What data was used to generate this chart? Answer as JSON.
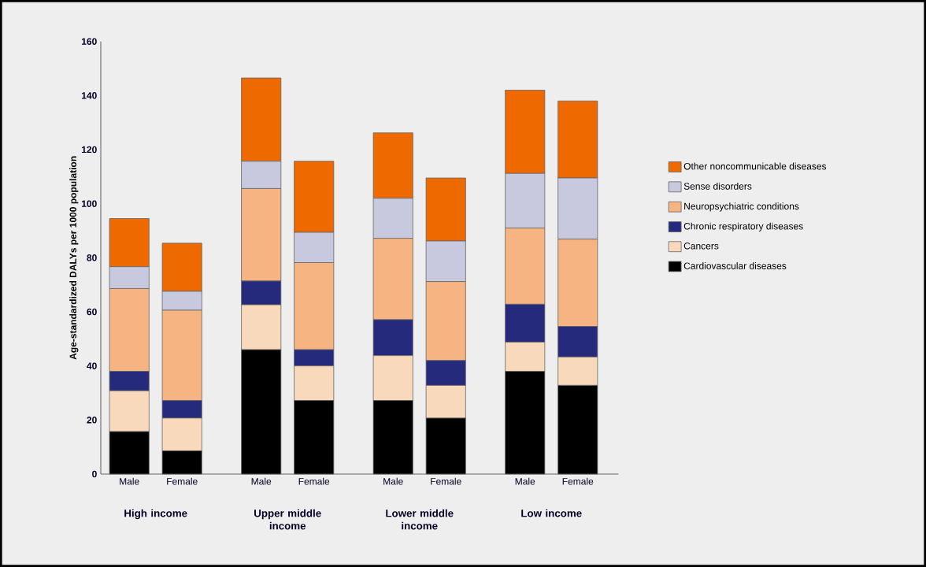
{
  "chart_data": {
    "type": "bar",
    "stacked": true,
    "legend": "right",
    "ylabel": "Age-standardized DALYs per 1000 population",
    "categories": [
      "Male",
      "Female",
      "Male",
      "Female",
      "Male",
      "Female",
      "Male",
      "Female"
    ],
    "annotations": [
      "High income",
      "Upper middle income",
      "Lower middle income",
      "Low income"
    ],
    "ylim": [
      0,
      160
    ],
    "yticks": [
      0,
      20,
      40,
      60,
      80,
      100,
      120,
      140,
      160
    ],
    "series": [
      {
        "name": "Cardiovascular diseases",
        "color": "#000000",
        "values": [
          15.7,
          8.6,
          46.0,
          27.2,
          27.2,
          20.7,
          38.0,
          32.8
        ]
      },
      {
        "name": "Cancers",
        "color": "#f9d9bc",
        "values": [
          15.1,
          12.1,
          16.6,
          12.8,
          16.6,
          12.1,
          10.8,
          10.5
        ]
      },
      {
        "name": "Chronic respiratory diseases",
        "color": "#262a7c",
        "values": [
          7.2,
          6.5,
          8.8,
          6.0,
          13.3,
          9.2,
          14.0,
          11.3
        ]
      },
      {
        "name": "Neuropsychiatric conditions",
        "color": "#f5b482",
        "values": [
          30.6,
          33.4,
          34.2,
          32.2,
          30.1,
          29.2,
          28.2,
          32.3
        ]
      },
      {
        "name": "Sense disorders",
        "color": "#c8c9de",
        "values": [
          8.1,
          7.0,
          10.1,
          11.2,
          14.8,
          15.0,
          20.2,
          22.6
        ]
      },
      {
        "name": "Other noncommunicable diseases",
        "color": "#ee6a00",
        "values": [
          17.8,
          17.8,
          30.8,
          26.3,
          24.2,
          23.3,
          30.8,
          28.5
        ]
      }
    ]
  }
}
